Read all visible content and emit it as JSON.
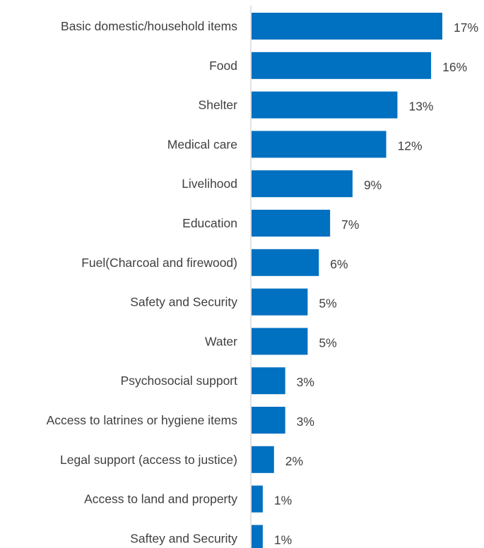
{
  "chart_data": {
    "type": "bar",
    "orientation": "horizontal",
    "categories": [
      "Basic domestic/household items",
      "Food",
      "Shelter",
      "Medical care",
      "Livelihood",
      "Education",
      "Fuel(Charcoal and firewood)",
      "Safety and Security",
      "Water",
      "Psychosocial support",
      "Access to latrines or hygiene items",
      "Legal support (access to justice)",
      "Access to land and property",
      "Saftey and Security"
    ],
    "values": [
      17,
      16,
      13,
      12,
      9,
      7,
      6,
      5,
      5,
      3,
      3,
      2,
      1,
      1
    ],
    "value_labels": [
      "17%",
      "16%",
      "13%",
      "12%",
      "9%",
      "7%",
      "6%",
      "5%",
      "5%",
      "3%",
      "3%",
      "2%",
      "1%",
      "1%"
    ],
    "unit": "%",
    "title": "",
    "xlabel": "",
    "ylabel": "",
    "xlim": [
      0,
      17
    ],
    "grid": false,
    "legend": "none",
    "bar_color": "#0070C0",
    "text_color": "#404040",
    "axis_color": "#D9D9D9"
  }
}
